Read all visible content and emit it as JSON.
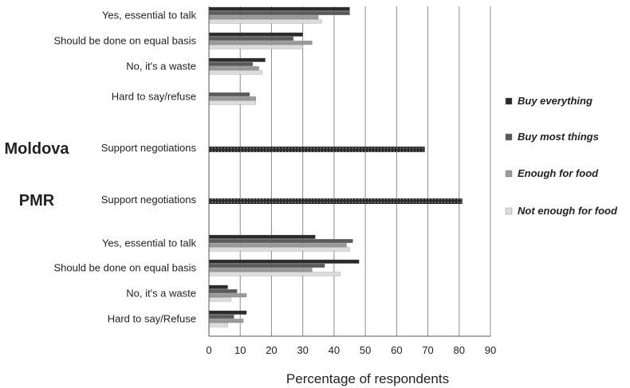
{
  "chart_data": {
    "type": "bar",
    "orientation": "horizontal",
    "xlabel": "Percentage of respondents",
    "xlim": [
      0,
      90
    ],
    "xticks": [
      0,
      10,
      20,
      30,
      40,
      50,
      60,
      70,
      80,
      90
    ],
    "grid": true,
    "legend_position": "right",
    "series": [
      {
        "name": "Buy everything",
        "color": "#2b2b2b"
      },
      {
        "name": "Buy most things",
        "color": "#5a5a5a"
      },
      {
        "name": "Enough for food",
        "color": "#9a9a9a"
      },
      {
        "name": "Not enough for food",
        "color": "#dcdcdc"
      }
    ],
    "groups": [
      {
        "label": "",
        "categories": [
          {
            "label": "Yes, essential to talk",
            "values": [
              45,
              45,
              35,
              36
            ]
          },
          {
            "label": "Should be done on equal basis",
            "values": [
              30,
              27,
              33,
              30
            ]
          },
          {
            "label": "No, it's a waste",
            "values": [
              18,
              14,
              16,
              17
            ]
          },
          {
            "label": "Hard to say/refuse",
            "values": [
              null,
              13,
              15,
              15
            ]
          }
        ]
      },
      {
        "label": "Moldova",
        "categories": [
          {
            "label": "Support negotiations",
            "values": [
              69
            ],
            "pattern": "dotted"
          }
        ]
      },
      {
        "label": "PMR",
        "categories": [
          {
            "label": "Support negotiations",
            "values": [
              81
            ],
            "pattern": "dotted"
          }
        ]
      },
      {
        "label": "",
        "categories": [
          {
            "label": "Yes, essential to talk",
            "values": [
              34,
              46,
              44,
              45
            ]
          },
          {
            "label": "Should be done on equal basis",
            "values": [
              48,
              37,
              33,
              42
            ]
          },
          {
            "label": "No, it's a waste",
            "values": [
              6,
              9,
              12,
              7
            ]
          },
          {
            "label": "Hard to say/Refuse",
            "values": [
              12,
              8,
              11,
              6
            ]
          }
        ]
      }
    ]
  }
}
